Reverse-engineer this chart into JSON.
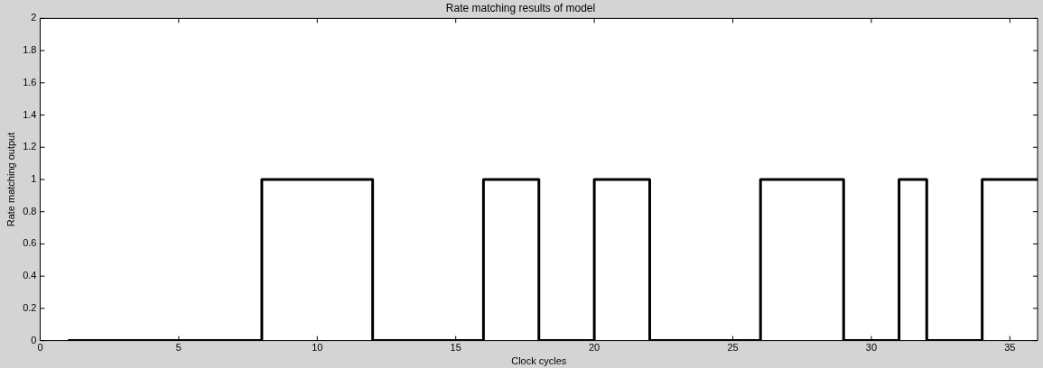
{
  "chart_data": {
    "type": "step",
    "title": "Rate matching results of model",
    "xlabel": "Clock cycles",
    "ylabel": "Rate matching output",
    "x": [
      1,
      8,
      12,
      16,
      18,
      20,
      22,
      26,
      29,
      31,
      32,
      34,
      36
    ],
    "values": [
      0,
      1,
      0,
      1,
      0,
      1,
      0,
      1,
      0,
      1,
      0,
      1,
      1
    ],
    "color": "#000000",
    "xlim": [
      0,
      36
    ],
    "xticks": [
      0,
      5,
      10,
      15,
      20,
      25,
      30,
      35
    ],
    "ylim": [
      0,
      2
    ],
    "yticks": [
      0,
      0.2,
      0.4,
      0.6,
      0.8,
      1,
      1.2,
      1.4,
      1.6,
      1.8,
      2
    ],
    "grid": false,
    "legend": false,
    "marker": "none",
    "line_style": "solid"
  }
}
